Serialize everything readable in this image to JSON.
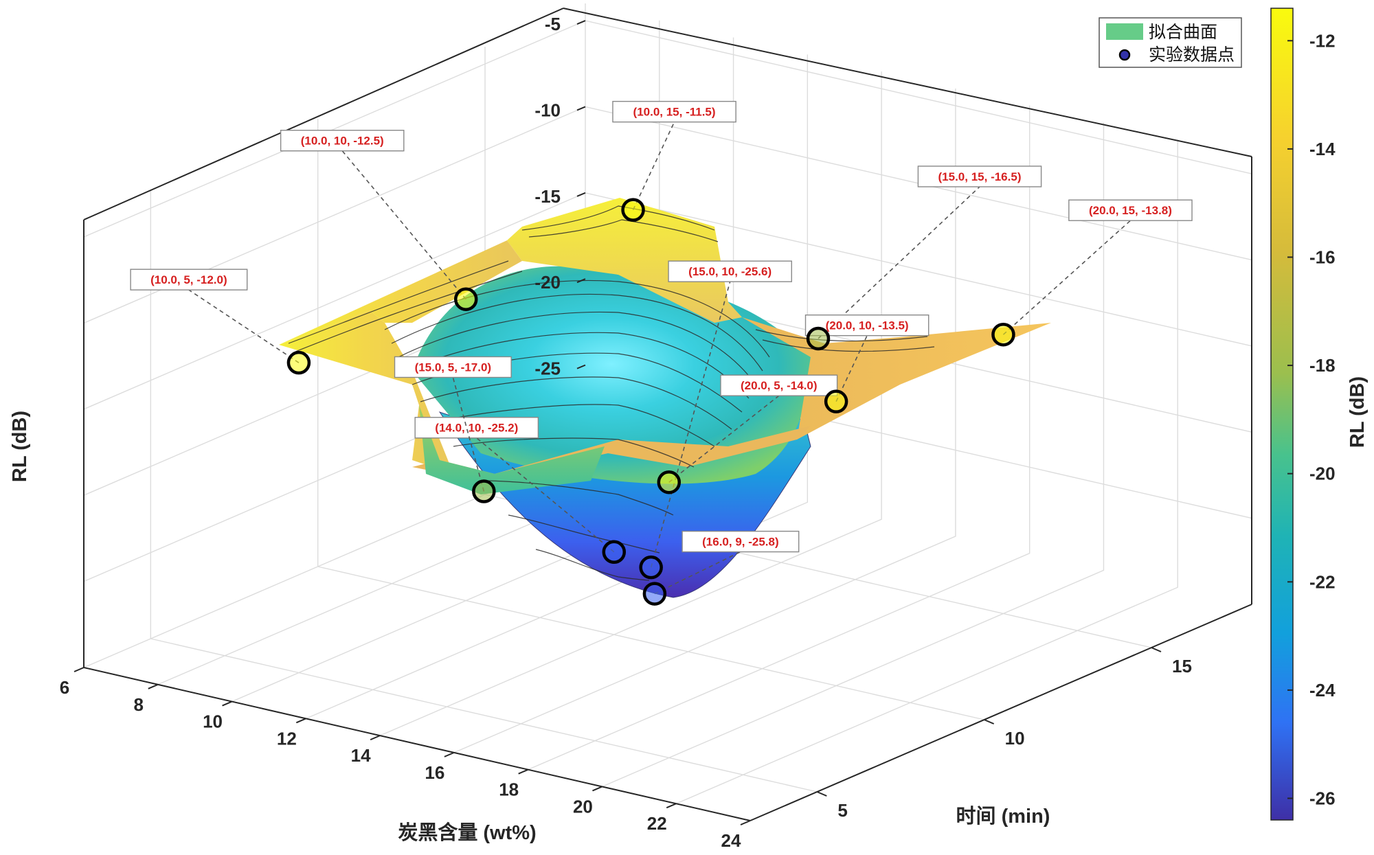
{
  "chart_data": {
    "type": "surface3d",
    "xlabel": "炭黑含量 (wt%)",
    "ylabel": "时间 (min)",
    "zlabel": "RL (dB)",
    "colorbar_label": "RL (dB)",
    "x_ticks": [
      "6",
      "8",
      "10",
      "12",
      "14",
      "16",
      "18",
      "20",
      "22",
      "24"
    ],
    "y_ticks": [
      "5",
      "10",
      "15"
    ],
    "z_ticks": [
      "-5",
      "-10",
      "-15",
      "-20",
      "-25"
    ],
    "colorbar_ticks": [
      "-12",
      "-14",
      "-16",
      "-18",
      "-20",
      "-22",
      "-24",
      "-26"
    ],
    "xlim": [
      6,
      24
    ],
    "ylim": [
      3,
      18
    ],
    "zlim": [
      -30,
      -4
    ],
    "clim": [
      -26.4,
      -11.4
    ],
    "colormap": "parula",
    "grid": true,
    "legend_position": "top-right",
    "legend": {
      "surface_label": "拟合曲面",
      "points_label": "实验数据点",
      "surface_color": "#66cc88",
      "points_color": "#3333aa"
    },
    "points": [
      {
        "x": 10,
        "y": 5,
        "z": -12.0,
        "label": "(10.0, 5, -12.0)"
      },
      {
        "x": 14,
        "y": 10,
        "z": -25.2,
        "label": "(14.0, 10, -25.2)"
      },
      {
        "x": 10,
        "y": 10,
        "z": -12.5,
        "label": "(10.0, 10, -12.5)"
      },
      {
        "x": 10,
        "y": 15,
        "z": -11.5,
        "label": "(10.0, 15, -11.5)"
      },
      {
        "x": 15,
        "y": 5,
        "z": -17.0,
        "label": "(15.0, 5, -17.0)"
      },
      {
        "x": 15,
        "y": 10,
        "z": -25.6,
        "label": "(15.0, 10, -25.6)"
      },
      {
        "x": 15,
        "y": 15,
        "z": -16.5,
        "label": "(15.0, 15, -16.5)"
      },
      {
        "x": 20,
        "y": 5,
        "z": -14.0,
        "label": "(20.0, 5, -14.0)"
      },
      {
        "x": 16,
        "y": 9,
        "z": -25.8,
        "label": "(16.0, 9, -25.8)"
      },
      {
        "x": 20,
        "y": 10,
        "z": -13.5,
        "label": "(20.0, 10, -13.5)"
      },
      {
        "x": 20,
        "y": 15,
        "z": -13.8,
        "label": "(20.0, 15, -13.8)"
      }
    ]
  }
}
